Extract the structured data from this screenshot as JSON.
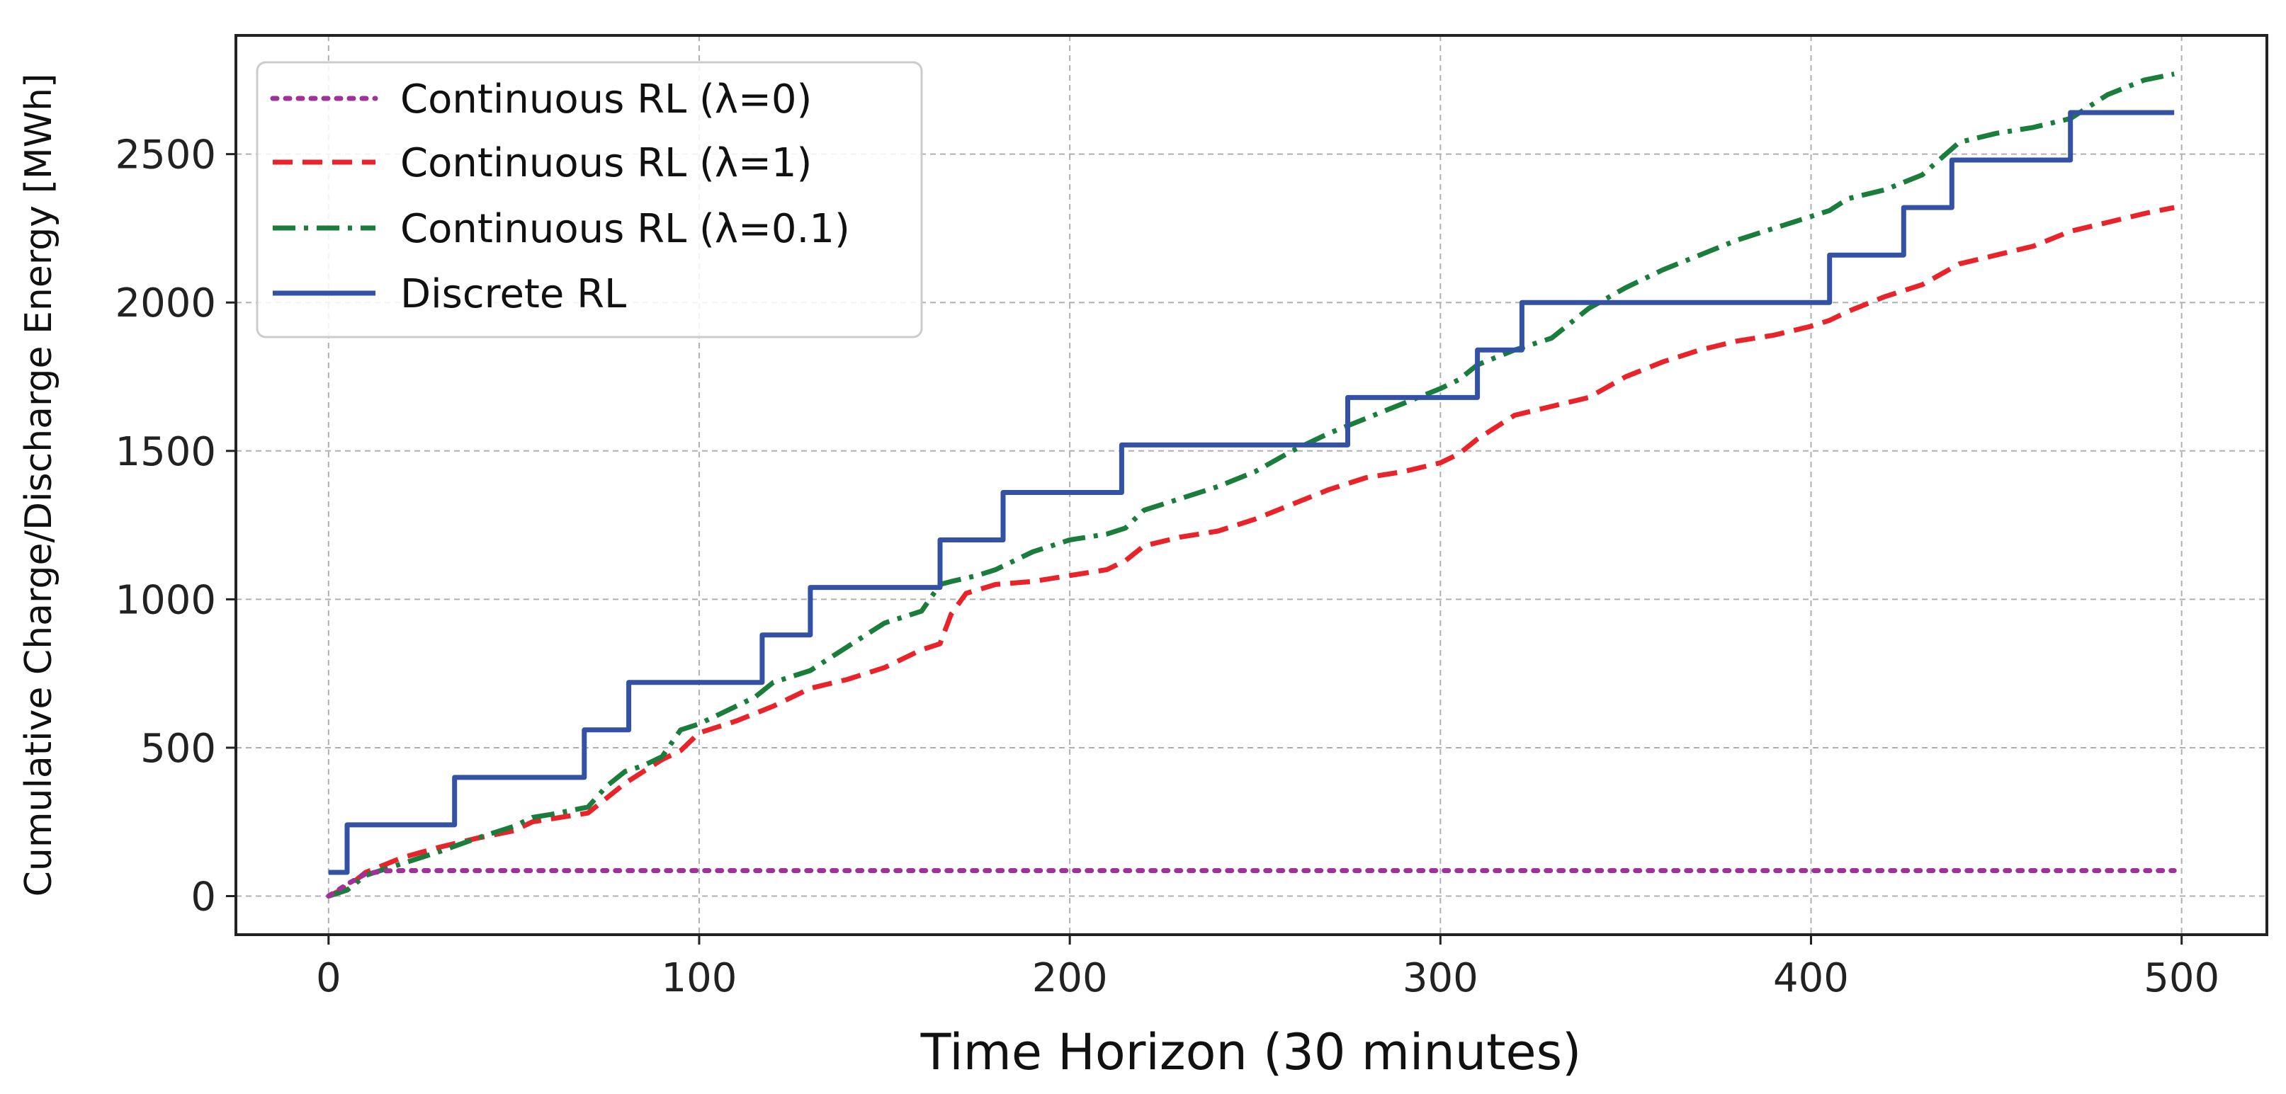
{
  "colors": {
    "lambda0": "#a0309a",
    "lambda1": "#e8232a",
    "lambda01": "#1a7d3c",
    "discrete": "#3352a3",
    "grid": "#b0b0b0",
    "frame": "#222222"
  },
  "chart_data": {
    "type": "line",
    "title": "",
    "xlabel": "Time Horizon (30 minutes)",
    "ylabel": "Cumulative Charge/Discharge Energy [MWh]",
    "xlim": [
      -25,
      523
    ],
    "ylim": [
      -130,
      2900
    ],
    "xticks": [
      "0",
      "100",
      "200",
      "300",
      "400",
      "500"
    ],
    "xtick_values": [
      0,
      100,
      200,
      300,
      400,
      500
    ],
    "yticks": [
      "0",
      "500",
      "1000",
      "1500",
      "2000",
      "2500"
    ],
    "ytick_values": [
      0,
      500,
      1000,
      1500,
      2000,
      2500
    ],
    "grid": true,
    "legend_position": "top-left",
    "series": [
      {
        "name": "Continuous RL (λ=0)",
        "style": "dotted",
        "color_key": "lambda0",
        "x": [
          0,
          5,
          10,
          15,
          20,
          25,
          498
        ],
        "y": [
          0,
          40,
          75,
          85,
          86,
          86,
          86
        ]
      },
      {
        "name": "Continuous RL (λ=1)",
        "style": "dashed",
        "color_key": "lambda1",
        "x": [
          0,
          5,
          10,
          20,
          30,
          40,
          50,
          55,
          60,
          70,
          75,
          80,
          90,
          95,
          100,
          110,
          120,
          130,
          140,
          150,
          160,
          165,
          168,
          172,
          180,
          190,
          200,
          210,
          215,
          220,
          230,
          240,
          250,
          260,
          270,
          280,
          290,
          300,
          305,
          310,
          320,
          330,
          340,
          350,
          360,
          370,
          380,
          390,
          400,
          405,
          410,
          420,
          430,
          440,
          450,
          460,
          470,
          480,
          490,
          498
        ],
        "y": [
          0,
          30,
          80,
          130,
          165,
          195,
          220,
          250,
          260,
          280,
          330,
          380,
          460,
          490,
          550,
          590,
          640,
          700,
          730,
          770,
          830,
          850,
          950,
          1020,
          1050,
          1060,
          1080,
          1100,
          1130,
          1180,
          1210,
          1230,
          1270,
          1320,
          1370,
          1410,
          1430,
          1460,
          1490,
          1540,
          1620,
          1650,
          1680,
          1750,
          1800,
          1840,
          1870,
          1890,
          1920,
          1940,
          1970,
          2020,
          2060,
          2130,
          2160,
          2190,
          2240,
          2270,
          2300,
          2320
        ]
      },
      {
        "name": "Continuous RL (λ=0.1)",
        "style": "dashdot",
        "color_key": "lambda01",
        "x": [
          0,
          5,
          10,
          20,
          30,
          40,
          50,
          55,
          60,
          70,
          75,
          80,
          85,
          90,
          95,
          100,
          110,
          115,
          120,
          130,
          140,
          150,
          160,
          165,
          168,
          175,
          180,
          190,
          200,
          210,
          215,
          220,
          230,
          240,
          250,
          260,
          270,
          280,
          290,
          300,
          305,
          310,
          320,
          330,
          340,
          350,
          360,
          370,
          380,
          390,
          400,
          405,
          410,
          420,
          430,
          440,
          450,
          460,
          470,
          480,
          490,
          498
        ],
        "y": [
          0,
          20,
          70,
          110,
          150,
          195,
          235,
          265,
          275,
          300,
          370,
          420,
          440,
          470,
          560,
          580,
          640,
          670,
          720,
          760,
          840,
          920,
          960,
          1050,
          1060,
          1080,
          1100,
          1160,
          1200,
          1220,
          1240,
          1300,
          1340,
          1380,
          1430,
          1500,
          1560,
          1610,
          1660,
          1710,
          1740,
          1790,
          1840,
          1880,
          1980,
          2050,
          2110,
          2160,
          2210,
          2250,
          2290,
          2310,
          2350,
          2380,
          2430,
          2540,
          2570,
          2590,
          2620,
          2700,
          2750,
          2770
        ]
      },
      {
        "name": "Discrete RL",
        "style": "solid",
        "color_key": "discrete",
        "x": [
          0,
          5,
          5,
          34,
          34,
          69,
          69,
          81,
          81,
          117,
          117,
          130,
          130,
          165,
          165,
          182,
          182,
          214,
          214,
          275,
          275,
          310,
          310,
          322,
          322,
          405,
          405,
          425,
          425,
          438,
          438,
          470,
          470,
          498
        ],
        "y": [
          80,
          80,
          240,
          240,
          400,
          400,
          560,
          560,
          720,
          720,
          880,
          880,
          1040,
          1040,
          1200,
          1200,
          1360,
          1360,
          1520,
          1520,
          1680,
          1680,
          1840,
          1840,
          2000,
          2000,
          2160,
          2160,
          2320,
          2320,
          2480,
          2480,
          2640,
          2640
        ]
      }
    ]
  }
}
